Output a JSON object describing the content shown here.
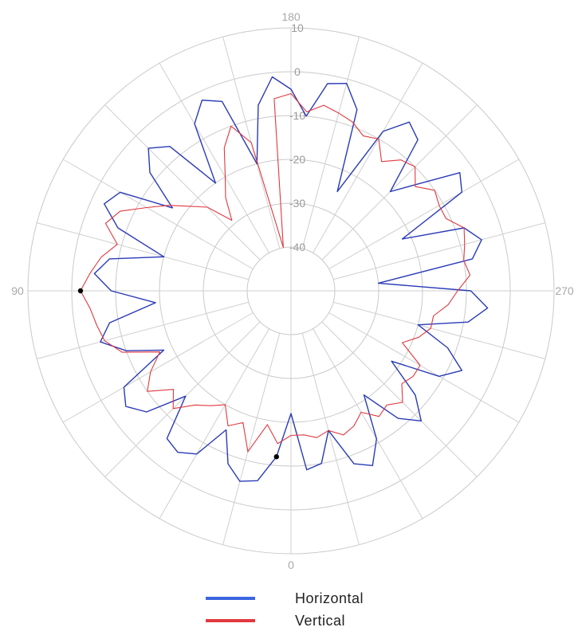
{
  "chart_data": {
    "type": "polar-line",
    "angle_labels": {
      "top": "180",
      "bottom": "0",
      "left": "90",
      "right": "270"
    },
    "angular_grid_step_deg": 15,
    "radial_ticks": [
      "10",
      "0",
      "-10",
      "-20",
      "-30",
      "-40"
    ],
    "r_range": [
      -40,
      10
    ],
    "r_center_offset": 10,
    "angle_direction": "0 at bottom, 90 at left, 180 at top, 270 at right",
    "grid": true,
    "legend": {
      "placement": "bottom-center",
      "entries": [
        {
          "name": "Horizontal",
          "color": "#2a3bb7"
        },
        {
          "name": "Vertical",
          "color": "#e0393e"
        }
      ]
    },
    "series": [
      {
        "name": "Horizontal",
        "color": "#2a3bb7",
        "angles_deg": [
          0,
          5,
          10,
          15,
          20,
          25,
          30,
          35,
          40,
          45,
          50,
          55,
          60,
          65,
          70,
          75,
          80,
          85,
          90,
          95,
          100,
          105,
          110,
          115,
          120,
          125,
          130,
          135,
          140,
          145,
          150,
          155,
          160,
          165,
          170,
          175,
          180,
          185,
          190,
          195,
          200,
          205,
          210,
          215,
          220,
          225,
          230,
          235,
          240,
          245,
          250,
          255,
          260,
          265,
          270,
          275,
          280,
          285,
          290,
          295,
          300,
          305,
          310,
          315,
          320,
          325,
          330,
          335,
          340,
          345,
          350,
          355,
          360
        ],
        "values_db": [
          -22,
          -12,
          -6,
          -5,
          -8,
          -15,
          -7,
          -5,
          -6,
          -16,
          -7,
          -4,
          -6,
          -18,
          -10,
          -5,
          -8,
          -19,
          -9,
          -5,
          -8,
          -20,
          -8,
          -3,
          -5,
          -17,
          -8,
          -4,
          -7,
          -20,
          -6,
          -2,
          -4,
          -20,
          -7,
          -1,
          -4,
          -10,
          -2,
          -1,
          -6,
          -25,
          -8,
          -3,
          -5,
          -18,
          -12,
          -3,
          -5,
          -22,
          -8,
          -5,
          -8,
          -30,
          -9,
          -5,
          -9,
          -20,
          -12,
          -7,
          -11,
          -22,
          -13,
          -8,
          -12,
          -21,
          -11,
          -6,
          -8,
          -17,
          -10,
          -9,
          -22
        ],
        "markers": [
          {
            "angle_deg": 5,
            "value_db": -12
          }
        ]
      },
      {
        "name": "Vertical",
        "color": "#e0393e",
        "angles_deg": [
          0,
          5,
          10,
          15,
          20,
          25,
          30,
          35,
          40,
          45,
          50,
          55,
          60,
          65,
          70,
          75,
          80,
          85,
          90,
          95,
          100,
          105,
          110,
          115,
          120,
          125,
          130,
          135,
          140,
          145,
          150,
          155,
          160,
          165,
          170,
          175,
          180,
          185,
          190,
          195,
          200,
          205,
          210,
          215,
          220,
          225,
          230,
          235,
          240,
          245,
          250,
          255,
          260,
          265,
          270,
          275,
          280,
          285,
          290,
          295,
          300,
          305,
          310,
          315,
          320,
          325,
          330,
          335,
          340,
          345,
          350,
          355,
          360
        ],
        "values_db": [
          -17,
          -15,
          -19,
          -12,
          -18,
          -16,
          -20,
          -18,
          -16,
          -12,
          -15,
          -10,
          -13,
          -17,
          -9,
          -6,
          -5,
          -4,
          -2,
          -4,
          -6,
          -9,
          -5,
          -7,
          -12,
          -16,
          -20,
          -23,
          -29,
          -24,
          -20,
          -14,
          -10,
          -15,
          -40,
          -6,
          -5,
          -9,
          -7,
          -8,
          -9,
          -11,
          -10,
          -14,
          -11,
          -10,
          -13,
          -10,
          -11,
          -11,
          -8,
          -9,
          -10,
          -9,
          -12,
          -14,
          -17,
          -17,
          -19,
          -22,
          -16,
          -16,
          -17,
          -14,
          -16,
          -15,
          -18,
          -16,
          -15,
          -17,
          -16,
          -17,
          -17
        ],
        "markers": [
          {
            "angle_deg": 90,
            "value_db": -2
          }
        ]
      }
    ]
  }
}
